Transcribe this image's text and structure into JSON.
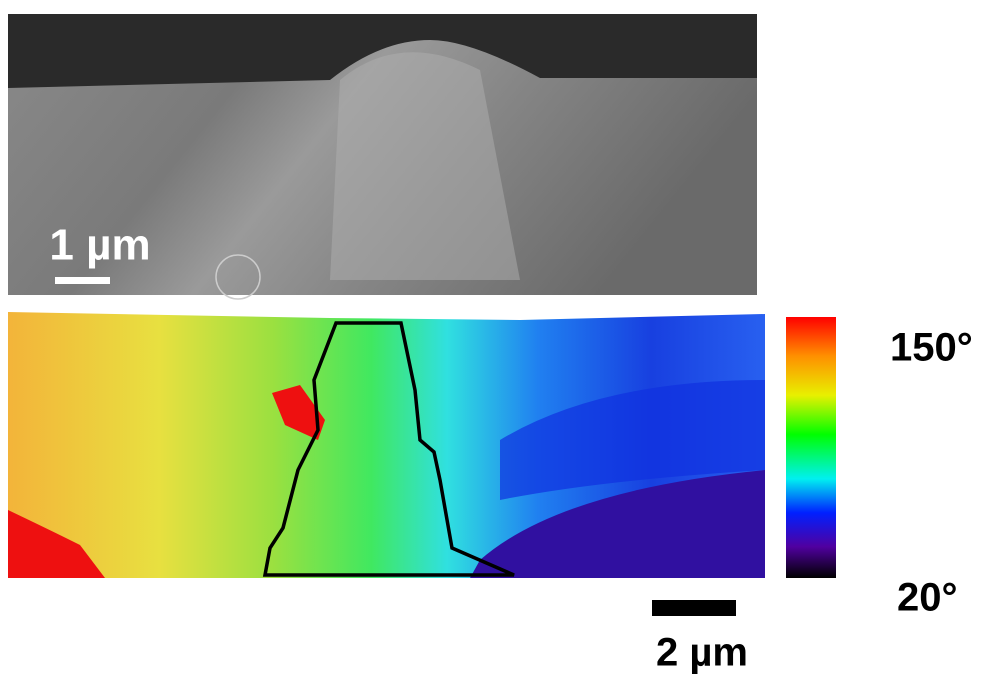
{
  "top_image": {
    "scale_bar": "1 µm"
  },
  "map": {
    "scale_bar": "2 µm",
    "colorbar": {
      "max_label": "150°",
      "min_label": "20°"
    }
  }
}
